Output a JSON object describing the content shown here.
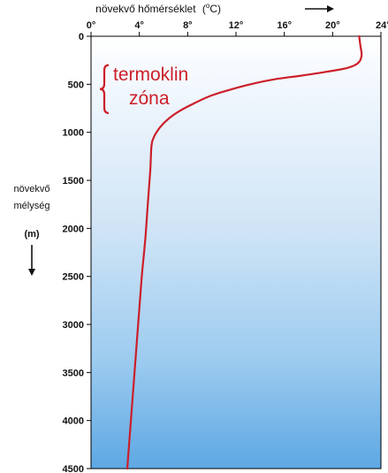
{
  "chart_data": {
    "type": "line",
    "x_axis_title": "növekvő hőmérséklet",
    "x_axis_unit_prefix": "(",
    "x_axis_unit_sup": "o",
    "x_axis_unit_suffix": "C)",
    "xlim": [
      0,
      24
    ],
    "xticks": [
      0,
      4,
      8,
      12,
      16,
      20,
      24
    ],
    "xtick_labels": [
      "0°",
      "4°",
      "8°",
      "12°",
      "16°",
      "20°",
      "24°"
    ],
    "ylim": [
      0,
      4500
    ],
    "yticks": [
      0,
      500,
      1000,
      1500,
      2000,
      2500,
      3000,
      3500,
      4000,
      4500
    ],
    "ytick_labels": [
      "0",
      "500",
      "1000",
      "1500",
      "2000",
      "2500",
      "3000",
      "3500",
      "4000",
      "4500"
    ],
    "y_axis_title_lines": [
      "növekvő",
      "mélység"
    ],
    "y_axis_unit": "(m)",
    "y_inverted": true,
    "annotation_lines": [
      "termoklin",
      "zóna"
    ],
    "annotation_range": [
      300,
      800
    ],
    "series": [
      {
        "color": "#cc1f2a",
        "points": [
          [
            22.2,
            0
          ],
          [
            22.3,
            100
          ],
          [
            22.4,
            200
          ],
          [
            22.1,
            280
          ],
          [
            21.2,
            330
          ],
          [
            19.5,
            370
          ],
          [
            17.4,
            410
          ],
          [
            15.1,
            450
          ],
          [
            13.2,
            500
          ],
          [
            11.4,
            560
          ],
          [
            9.9,
            620
          ],
          [
            8.5,
            700
          ],
          [
            7.3,
            780
          ],
          [
            6.4,
            860
          ],
          [
            5.7,
            950
          ],
          [
            5.2,
            1050
          ],
          [
            5.0,
            1150
          ],
          [
            4.9,
            1400
          ],
          [
            4.7,
            1750
          ],
          [
            4.5,
            2100
          ],
          [
            4.2,
            2500
          ],
          [
            3.9,
            3000
          ],
          [
            3.6,
            3500
          ],
          [
            3.3,
            4000
          ],
          [
            3.0,
            4500
          ]
        ]
      }
    ]
  }
}
